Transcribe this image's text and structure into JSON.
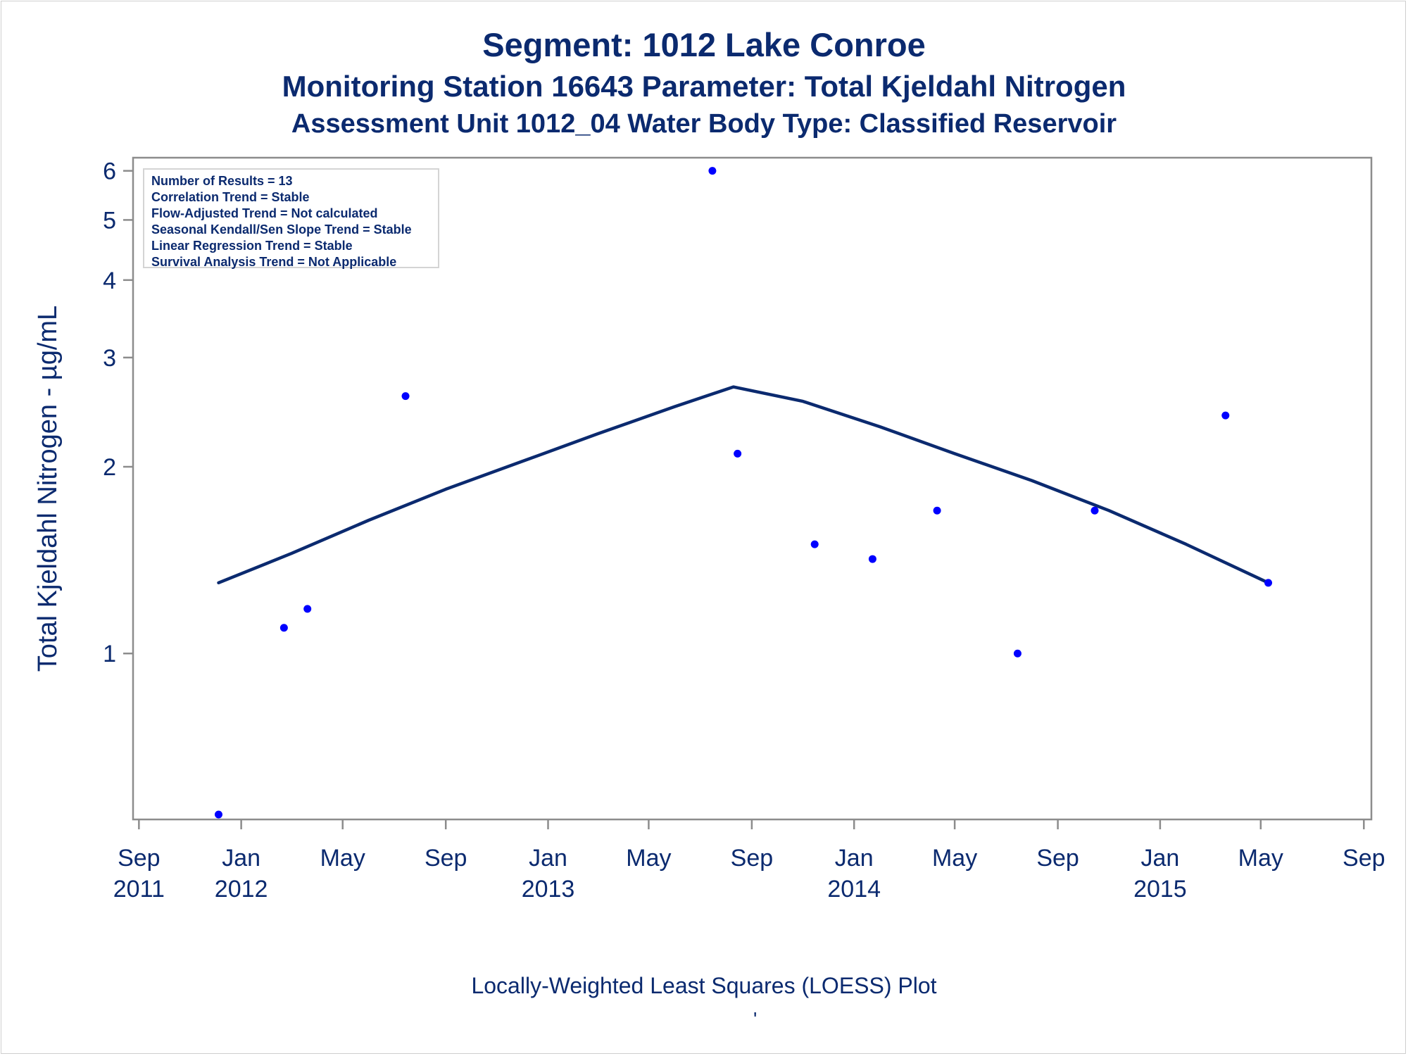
{
  "titles": {
    "line1": "Segment: 1012  Lake Conroe",
    "line2": "Monitoring Station 16643 Parameter: Total Kjeldahl Nitrogen",
    "line3": "Assessment Unit 1012_04   Water Body Type: Classified Reservoir"
  },
  "stats": [
    "Number of Results = 13",
    "Correlation Trend = Stable",
    "Flow-Adjusted Trend = Not calculated",
    "Seasonal Kendall/Sen Slope Trend = Stable",
    "Linear Regression Trend = Stable",
    "Survival Analysis Trend = Not Applicable"
  ],
  "footer": "Locally-Weighted Least Squares (LOESS) Plot",
  "footer_mark": "'",
  "colors": {
    "text": "#0b2a6f",
    "points": "#0000ff",
    "loess": "#0b2a6f",
    "axis": "#8c8c8c"
  },
  "chart_data": {
    "type": "scatter",
    "ylabel": "Total Kjeldahl Nitrogen -  µg/mL",
    "yscale": "log",
    "ylim": [
      0.54,
      6.3
    ],
    "xlim": [
      "2011-08-25",
      "2015-09-10"
    ],
    "x_ticks": [
      {
        "date": "2011-09-01",
        "month": "Sep",
        "year": "2011"
      },
      {
        "date": "2012-01-01",
        "month": "Jan",
        "year": "2012"
      },
      {
        "date": "2012-05-01",
        "month": "May",
        "year": ""
      },
      {
        "date": "2012-09-01",
        "month": "Sep",
        "year": ""
      },
      {
        "date": "2013-01-01",
        "month": "Jan",
        "year": "2013"
      },
      {
        "date": "2013-05-01",
        "month": "May",
        "year": ""
      },
      {
        "date": "2013-09-01",
        "month": "Sep",
        "year": ""
      },
      {
        "date": "2014-01-01",
        "month": "Jan",
        "year": "2014"
      },
      {
        "date": "2014-05-01",
        "month": "May",
        "year": ""
      },
      {
        "date": "2014-09-01",
        "month": "Sep",
        "year": ""
      },
      {
        "date": "2015-01-01",
        "month": "Jan",
        "year": "2015"
      },
      {
        "date": "2015-05-01",
        "month": "May",
        "year": ""
      },
      {
        "date": "2015-09-01",
        "month": "Sep",
        "year": ""
      }
    ],
    "y_ticks": [
      1,
      2,
      3,
      4,
      5,
      6
    ],
    "points": [
      {
        "x": "2011-12-05",
        "y": 0.55
      },
      {
        "x": "2012-02-21",
        "y": 1.1
      },
      {
        "x": "2012-03-20",
        "y": 1.18
      },
      {
        "x": "2012-07-15",
        "y": 2.6
      },
      {
        "x": "2013-07-16",
        "y": 6.0
      },
      {
        "x": "2013-08-15",
        "y": 2.1
      },
      {
        "x": "2013-11-15",
        "y": 1.5
      },
      {
        "x": "2014-01-23",
        "y": 1.42
      },
      {
        "x": "2014-04-10",
        "y": 1.7
      },
      {
        "x": "2014-07-15",
        "y": 1.0
      },
      {
        "x": "2014-10-15",
        "y": 1.7
      },
      {
        "x": "2015-03-20",
        "y": 2.42
      },
      {
        "x": "2015-05-10",
        "y": 1.3
      }
    ],
    "loess": [
      {
        "x": "2011-12-05",
        "y": 1.3
      },
      {
        "x": "2012-03-01",
        "y": 1.45
      },
      {
        "x": "2012-06-01",
        "y": 1.64
      },
      {
        "x": "2012-09-01",
        "y": 1.84
      },
      {
        "x": "2012-12-01",
        "y": 2.04
      },
      {
        "x": "2013-03-01",
        "y": 2.26
      },
      {
        "x": "2013-06-01",
        "y": 2.5
      },
      {
        "x": "2013-08-10",
        "y": 2.69
      },
      {
        "x": "2013-11-01",
        "y": 2.55
      },
      {
        "x": "2014-02-01",
        "y": 2.32
      },
      {
        "x": "2014-05-01",
        "y": 2.1
      },
      {
        "x": "2014-08-01",
        "y": 1.9
      },
      {
        "x": "2014-11-01",
        "y": 1.7
      },
      {
        "x": "2015-02-01",
        "y": 1.5
      },
      {
        "x": "2015-05-10",
        "y": 1.3
      }
    ]
  }
}
